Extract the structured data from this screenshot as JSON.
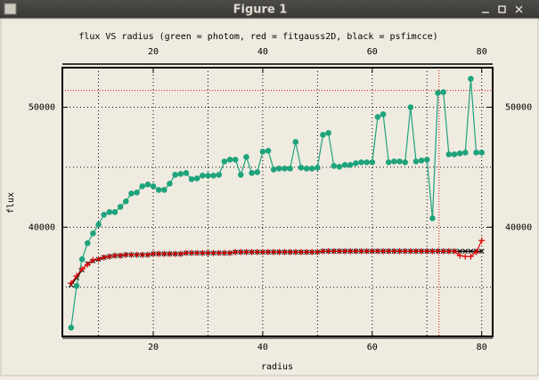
{
  "window": {
    "title": "Figure 1"
  },
  "chart_data": {
    "type": "line",
    "title": "flux VS radius (green = photom, red = fitgauss2D, black = psfimcce)",
    "x_label": "radius",
    "y_label": "flux",
    "x": [
      5,
      6,
      7,
      8,
      9,
      10,
      11,
      12,
      13,
      14,
      15,
      16,
      17,
      18,
      19,
      20,
      21,
      22,
      23,
      24,
      25,
      26,
      27,
      28,
      29,
      30,
      31,
      32,
      33,
      34,
      35,
      36,
      37,
      38,
      39,
      40,
      41,
      42,
      43,
      44,
      45,
      46,
      47,
      48,
      49,
      50,
      51,
      52,
      53,
      54,
      55,
      56,
      57,
      58,
      59,
      60,
      61,
      62,
      63,
      64,
      65,
      66,
      67,
      68,
      69,
      70,
      71,
      72,
      73,
      74,
      75,
      76,
      77,
      78,
      79,
      80
    ],
    "series": [
      {
        "name": "photom",
        "color": "#1fa37c",
        "marker": "circle",
        "values": [
          31630,
          35110,
          37330,
          38670,
          39480,
          40220,
          41040,
          41260,
          41260,
          41700,
          42150,
          42810,
          42890,
          43410,
          43560,
          43410,
          43110,
          43110,
          43630,
          44370,
          44440,
          44520,
          44000,
          44070,
          44300,
          44300,
          44300,
          44370,
          45480,
          45630,
          45630,
          44370,
          45850,
          44520,
          44590,
          46300,
          46370,
          44810,
          44890,
          44890,
          44890,
          47110,
          44960,
          44890,
          44890,
          44960,
          47700,
          47850,
          45110,
          45040,
          45190,
          45190,
          45330,
          45410,
          45410,
          45410,
          49190,
          49410,
          45410,
          45480,
          45480,
          45410,
          50000,
          45480,
          45560,
          45630,
          40740,
          51190,
          51260,
          46070,
          46070,
          46150,
          46220,
          52370,
          46220,
          46220
        ]
      },
      {
        "name": "psfimcce",
        "color": "#000000",
        "marker": "x",
        "values": [
          35190,
          35780,
          36440,
          36960,
          37190,
          37330,
          37480,
          37560,
          37630,
          37630,
          37700,
          37700,
          37700,
          37700,
          37700,
          37780,
          37780,
          37780,
          37780,
          37780,
          37780,
          37850,
          37850,
          37850,
          37850,
          37850,
          37850,
          37850,
          37850,
          37850,
          37930,
          37930,
          37930,
          37930,
          37930,
          37930,
          37930,
          37930,
          37930,
          37930,
          37930,
          37930,
          37930,
          37930,
          37930,
          37930,
          38000,
          38000,
          38000,
          38000,
          38000,
          38000,
          38000,
          38000,
          38000,
          38000,
          38000,
          38000,
          38000,
          38000,
          38000,
          38000,
          38000,
          38000,
          38000,
          38000,
          38000,
          38000,
          38000,
          38000,
          38000,
          38000,
          38000,
          38000,
          38000,
          38000
        ]
      },
      {
        "name": "fitgauss2D",
        "color": "#e00000",
        "marker": "plus",
        "values": [
          35330,
          35930,
          36520,
          36890,
          37260,
          37330,
          37480,
          37560,
          37630,
          37630,
          37700,
          37700,
          37700,
          37700,
          37700,
          37780,
          37780,
          37780,
          37780,
          37780,
          37780,
          37850,
          37850,
          37850,
          37850,
          37850,
          37850,
          37850,
          37850,
          37850,
          37930,
          37930,
          37930,
          37930,
          37930,
          37930,
          37930,
          37930,
          37930,
          37930,
          37930,
          37930,
          37930,
          37930,
          37930,
          37930,
          38000,
          38000,
          38000,
          38000,
          38000,
          38000,
          38000,
          38000,
          38000,
          38000,
          38000,
          38000,
          38000,
          38000,
          38000,
          38000,
          38000,
          38000,
          38000,
          38000,
          38000,
          38000,
          38000,
          38000,
          38000,
          37630,
          37560,
          37560,
          37930,
          38890
        ]
      }
    ],
    "xlim": [
      3.4,
      82
    ],
    "ylim": [
      30900,
      53300
    ],
    "xticks": [
      20,
      40,
      60,
      80
    ],
    "yticks": [
      40000,
      50000
    ],
    "xgrid": [
      10,
      20,
      30,
      40,
      50,
      60,
      70,
      80
    ],
    "ygrid": [
      35000,
      40000,
      45000,
      50000
    ],
    "hlines": [
      {
        "value": 51400,
        "color": "#e00000"
      }
    ],
    "vlines": [
      {
        "value": 72.2,
        "color": "#e00000"
      }
    ]
  }
}
